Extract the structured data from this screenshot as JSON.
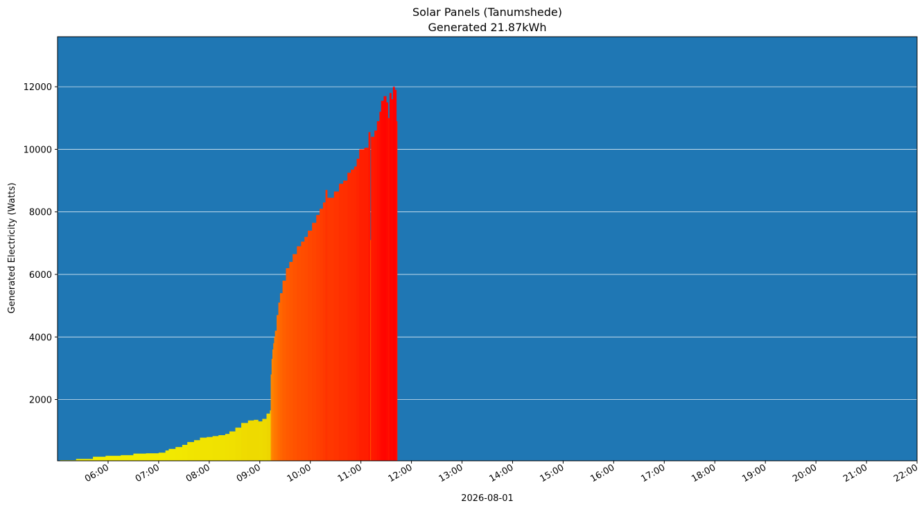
{
  "chart_data": {
    "type": "bar",
    "title": "Solar Panels (Tanumshede)",
    "subtitle": "Generated 21.87kWh",
    "xlabel": "2026-08-01",
    "ylabel": "Generated Electricity (Watts)",
    "background_color": "#1f77b4",
    "grid": "horizontal",
    "grid_color": "#ffffff",
    "x_range_hours": [
      5.0,
      22.0
    ],
    "ylim": [
      40,
      13600
    ],
    "y_ticks": [
      2000,
      4000,
      6000,
      8000,
      10000,
      12000
    ],
    "x_ticks": [
      {
        "h": 6,
        "label": "06:00"
      },
      {
        "h": 7,
        "label": "07:00"
      },
      {
        "h": 8,
        "label": "08:00"
      },
      {
        "h": 9,
        "label": "09:00"
      },
      {
        "h": 10,
        "label": "10:00"
      },
      {
        "h": 11,
        "label": "11:00"
      },
      {
        "h": 12,
        "label": "12:00"
      },
      {
        "h": 13,
        "label": "13:00"
      },
      {
        "h": 14,
        "label": "14:00"
      },
      {
        "h": 15,
        "label": "15:00"
      },
      {
        "h": 16,
        "label": "16:00"
      },
      {
        "h": 17,
        "label": "17:00"
      },
      {
        "h": 18,
        "label": "18:00"
      },
      {
        "h": 19,
        "label": "19:00"
      },
      {
        "h": 20,
        "label": "20:00"
      },
      {
        "h": 21,
        "label": "21:00"
      },
      {
        "h": 22,
        "label": "22:00"
      }
    ],
    "bar_color_scale": {
      "low": "#f4f000",
      "mid": "#ff9c00",
      "high": "#ff0000",
      "max_value": 12000
    },
    "series": [
      {
        "points": [
          {
            "t": "05:03",
            "w": 60
          },
          {
            "t": "05:22",
            "w": 100
          },
          {
            "t": "05:42",
            "w": 170
          },
          {
            "t": "05:57",
            "w": 200
          },
          {
            "t": "06:15",
            "w": 220
          },
          {
            "t": "06:30",
            "w": 270
          },
          {
            "t": "06:45",
            "w": 280
          },
          {
            "t": "07:00",
            "w": 300
          },
          {
            "t": "07:08",
            "w": 370
          },
          {
            "t": "07:12",
            "w": 420
          },
          {
            "t": "07:20",
            "w": 480
          },
          {
            "t": "07:28",
            "w": 550
          },
          {
            "t": "07:34",
            "w": 640
          },
          {
            "t": "07:42",
            "w": 700
          },
          {
            "t": "07:49",
            "w": 780
          },
          {
            "t": "07:57",
            "w": 800
          },
          {
            "t": "08:04",
            "w": 830
          },
          {
            "t": "08:11",
            "w": 860
          },
          {
            "t": "08:19",
            "w": 900
          },
          {
            "t": "08:24",
            "w": 980
          },
          {
            "t": "08:31",
            "w": 1100
          },
          {
            "t": "08:38",
            "w": 1250
          },
          {
            "t": "08:46",
            "w": 1330
          },
          {
            "t": "08:53",
            "w": 1350
          },
          {
            "t": "08:58",
            "w": 1300
          },
          {
            "t": "09:03",
            "w": 1380
          },
          {
            "t": "09:08",
            "w": 1550
          },
          {
            "t": "09:12",
            "w": 1650
          },
          {
            "t": "09:13",
            "w": 2800
          },
          {
            "t": "09:14",
            "w": 3300
          },
          {
            "t": "09:15",
            "w": 3600
          },
          {
            "t": "09:16",
            "w": 3800
          },
          {
            "t": "09:17",
            "w": 4000
          },
          {
            "t": "09:18",
            "w": 4200
          },
          {
            "t": "09:20",
            "w": 4700
          },
          {
            "t": "09:22",
            "w": 5100
          },
          {
            "t": "09:24",
            "w": 5400
          },
          {
            "t": "09:27",
            "w": 5800
          },
          {
            "t": "09:31",
            "w": 6200
          },
          {
            "t": "09:35",
            "w": 6400
          },
          {
            "t": "09:39",
            "w": 6650
          },
          {
            "t": "09:44",
            "w": 6900
          },
          {
            "t": "09:49",
            "w": 7050
          },
          {
            "t": "09:53",
            "w": 7200
          },
          {
            "t": "09:57",
            "w": 7400
          },
          {
            "t": "10:02",
            "w": 7650
          },
          {
            "t": "10:07",
            "w": 7900
          },
          {
            "t": "10:11",
            "w": 8100
          },
          {
            "t": "10:15",
            "w": 8300
          },
          {
            "t": "10:18",
            "w": 8700
          },
          {
            "t": "10:20",
            "w": 8450
          },
          {
            "t": "10:28",
            "w": 8650
          },
          {
            "t": "10:34",
            "w": 8900
          },
          {
            "t": "10:39",
            "w": 9000
          },
          {
            "t": "10:44",
            "w": 9250
          },
          {
            "t": "10:48",
            "w": 9350
          },
          {
            "t": "10:52",
            "w": 9450
          },
          {
            "t": "10:55",
            "w": 9700
          },
          {
            "t": "10:58",
            "w": 10000
          },
          {
            "t": "11:04",
            "w": 10050
          },
          {
            "t": "11:09",
            "w": 10550
          },
          {
            "t": "11:11",
            "w": 7100
          },
          {
            "t": "11:12",
            "w": 10400
          },
          {
            "t": "11:16",
            "w": 10600
          },
          {
            "t": "11:19",
            "w": 10900
          },
          {
            "t": "11:22",
            "w": 11200
          },
          {
            "t": "11:24",
            "w": 11550
          },
          {
            "t": "11:27",
            "w": 11700
          },
          {
            "t": "11:30",
            "w": 11500
          },
          {
            "t": "11:32",
            "w": 11000
          },
          {
            "t": "11:34",
            "w": 11800
          },
          {
            "t": "11:36",
            "w": 11600
          },
          {
            "t": "11:38",
            "w": 12000
          },
          {
            "t": "11:40",
            "w": 11900
          },
          {
            "t": "11:42",
            "w": 10900
          }
        ],
        "end_time": "11:43"
      }
    ]
  }
}
